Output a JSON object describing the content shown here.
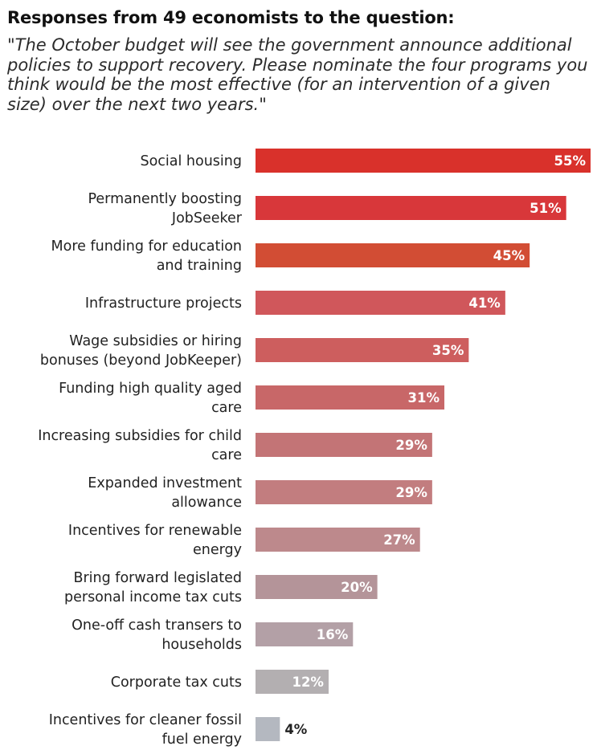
{
  "chart_data": {
    "type": "bar",
    "orientation": "horizontal",
    "title": "Responses from 49 economists to the question:",
    "subtitle": "\"The October budget will see the government announce additional policies to support recovery. Please nominate the four programs you think would be the most effective (for an intervention of a given size) over the next two years.\"",
    "categories": [
      [
        "Social housing"
      ],
      [
        "Permanently boosting",
        "JobSeeker"
      ],
      [
        "More funding for education",
        "and training"
      ],
      [
        "Infrastructure projects"
      ],
      [
        "Wage subsidies or hiring",
        "bonuses (beyond JobKeeper)"
      ],
      [
        "Funding high quality aged",
        "care"
      ],
      [
        "Increasing subsidies for child",
        "care"
      ],
      [
        "Expanded investment",
        "allowance"
      ],
      [
        "Incentives for renewable",
        "energy"
      ],
      [
        "Bring forward legislated",
        "personal income tax cuts"
      ],
      [
        "One-off cash transers to",
        "households"
      ],
      [
        "Corporate tax cuts"
      ],
      [
        "Incentives for cleaner fossil",
        "fuel energy"
      ]
    ],
    "values": [
      55,
      51,
      45,
      41,
      35,
      31,
      29,
      29,
      27,
      20,
      16,
      12,
      4
    ],
    "value_labels": [
      "55%",
      "51%",
      "45%",
      "41%",
      "35%",
      "31%",
      "29%",
      "29%",
      "27%",
      "20%",
      "16%",
      "12%",
      "4%"
    ],
    "bar_colors": [
      "#d9312b",
      "#d8373a",
      "#d24d34",
      "#d0575b",
      "#cd5e5e",
      "#c86768",
      "#c37476",
      "#c27d7f",
      "#bd898c",
      "#b49499",
      "#b3a0a6",
      "#b3afb1",
      "#b4b8c0"
    ],
    "value_label_colors": [
      "#ffffff",
      "#ffffff",
      "#ffffff",
      "#ffffff",
      "#ffffff",
      "#ffffff",
      "#ffffff",
      "#ffffff",
      "#ffffff",
      "#ffffff",
      "#ffffff",
      "#ffffff",
      "#222222"
    ],
    "xlim": [
      0,
      55
    ],
    "grid": false,
    "legend": "none",
    "xlabel": "",
    "ylabel": ""
  }
}
